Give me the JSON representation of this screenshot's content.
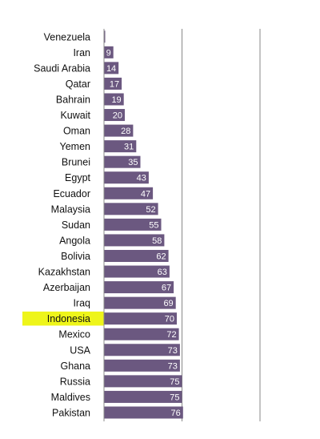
{
  "chart_data": {
    "type": "bar",
    "orientation": "horizontal",
    "categories": [
      "Venezuela",
      "Iran",
      "Saudi Arabia",
      "Qatar",
      "Bahrain",
      "Kuwait",
      "Oman",
      "Yemen",
      "Brunei",
      "Egypt",
      "Ecuador",
      "Malaysia",
      "Sudan",
      "Angola",
      "Bolivia",
      "Kazakhstan",
      "Azerbaijan",
      "Iraq",
      "Indonesia",
      "Mexico",
      "USA",
      "Ghana",
      "Russia",
      "Maldives",
      "Pakistan"
    ],
    "values": [
      1,
      9,
      14,
      17,
      19,
      20,
      28,
      31,
      35,
      43,
      47,
      52,
      55,
      58,
      62,
      63,
      67,
      69,
      70,
      72,
      73,
      73,
      75,
      75,
      76
    ],
    "value_labels": [
      "",
      "9",
      "14",
      "17",
      "19",
      "20",
      "28",
      "31",
      "35",
      "43",
      "47",
      "52",
      "55",
      "58",
      "62",
      "63",
      "67",
      "69",
      "70",
      "72",
      "73",
      "73",
      "75",
      "75",
      "76"
    ],
    "xlim": [
      0,
      150
    ],
    "gridlines": [
      0,
      75,
      150
    ],
    "highlighted_category": "Indonesia",
    "bar_color": "#6b5880",
    "highlight_color": "#eef51a",
    "axis_color": "#888888"
  }
}
